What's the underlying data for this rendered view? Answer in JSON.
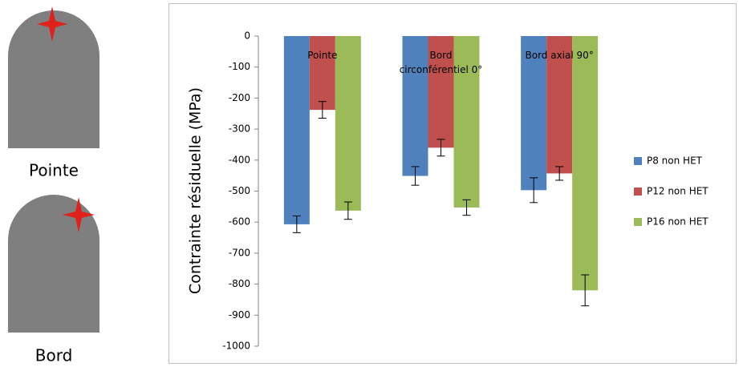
{
  "labels": [
    "Pointe",
    "Bord"
  ],
  "chart_data": {
    "type": "bar",
    "y_label": "Contrainte résiduelle (MPa)",
    "categories": [
      "Pointe",
      "Bord circonférentiel 0°",
      "Bord axial 90°"
    ],
    "series": [
      {
        "name": "P8 non HET",
        "color": "#4f81bd",
        "values": [
          -607,
          -451,
          -497
        ],
        "errors": [
          27,
          30,
          40
        ]
      },
      {
        "name": "P12 non HET",
        "color": "#c0504d",
        "values": [
          -238,
          -360,
          -443
        ],
        "errors": [
          27,
          27,
          22
        ]
      },
      {
        "name": "P16 non HET",
        "color": "#9bbb59",
        "values": [
          -563,
          -553,
          -820
        ],
        "errors": [
          28,
          25,
          50
        ]
      }
    ],
    "ylim": [
      -1000,
      0
    ],
    "yticks": [
      0,
      -100,
      -200,
      -300,
      -400,
      -500,
      -600,
      -700,
      -800,
      -900,
      -1000
    ],
    "grid": false,
    "legend": "right"
  }
}
